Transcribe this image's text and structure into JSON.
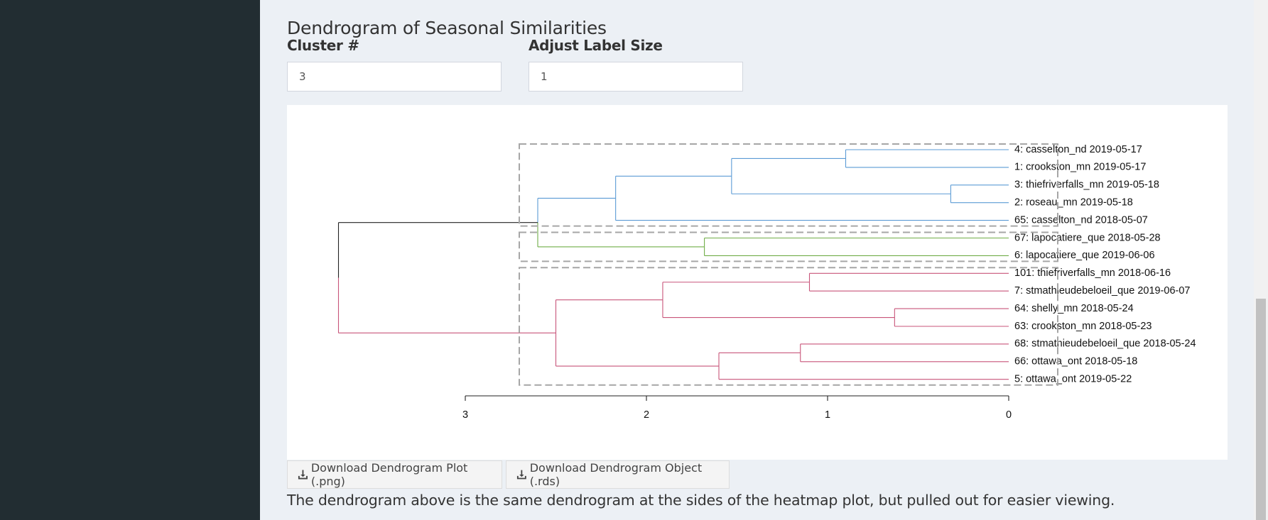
{
  "page": {
    "title": "Dendrogram of Seasonal Similarities",
    "caption": "The dendrogram above is the same dendrogram at the sides of the heatmap plot, but pulled out for easier viewing."
  },
  "controls": {
    "cluster": {
      "label": "Cluster #",
      "value": "3"
    },
    "label_size": {
      "label": "Adjust Label Size",
      "value": "1"
    }
  },
  "buttons": {
    "download_png": "Download Dendrogram Plot (.png)",
    "download_rds": "Download Dendrogram Object (.rds)"
  },
  "icons": {
    "download": "download-icon"
  },
  "chart_data": {
    "type": "dendrogram",
    "leaves": [
      "4: casselton_nd 2019-05-17",
      "1: crookston_mn 2019-05-17",
      "3: thiefriverfalls_mn 2019-05-18",
      "2: roseau_mn 2019-05-18",
      "65: casselton_nd 2018-05-07",
      "67: lapocatiere_que 2018-05-28",
      "6: lapocatiere_que 2019-06-06",
      "101: thiefriverfalls_mn 2018-06-16",
      "7: stmathieudebeloeil_que 2019-06-07",
      "64: shelly_mn 2018-05-24",
      "63: crookston_mn 2018-05-23",
      "68: stmathieudebeloeil_que 2018-05-24",
      "66: ottawa_ont 2018-05-18",
      "5: ottawa_ont 2019-05-22"
    ],
    "merges": [
      {
        "a": [
          0
        ],
        "b": [
          1
        ],
        "height": 0.9
      },
      {
        "a": [
          2
        ],
        "b": [
          3
        ],
        "height": 0.32
      },
      {
        "a": [
          0,
          1
        ],
        "b": [
          2,
          3
        ],
        "height": 1.53
      },
      {
        "a": [
          0,
          1,
          2,
          3
        ],
        "b": [
          4
        ],
        "height": 2.17
      },
      {
        "a": [
          5
        ],
        "b": [
          6
        ],
        "height": 1.68
      },
      {
        "a": [
          0,
          1,
          2,
          3,
          4
        ],
        "b": [
          5,
          6
        ],
        "height": 2.6
      },
      {
        "a": [
          7
        ],
        "b": [
          8
        ],
        "height": 1.1
      },
      {
        "a": [
          9
        ],
        "b": [
          10
        ],
        "height": 0.63
      },
      {
        "a": [
          7,
          8
        ],
        "b": [
          9,
          10
        ],
        "height": 1.91
      },
      {
        "a": [
          11
        ],
        "b": [
          12
        ],
        "height": 1.15
      },
      {
        "a": [
          11,
          12
        ],
        "b": [
          13
        ],
        "height": 1.6
      },
      {
        "a": [
          7,
          8,
          9,
          10
        ],
        "b": [
          11,
          12,
          13
        ],
        "height": 2.5
      },
      {
        "a": [
          0,
          1,
          2,
          3,
          4,
          5,
          6
        ],
        "b": [
          7,
          8,
          9,
          10,
          11,
          12,
          13
        ],
        "height": 3.7
      }
    ],
    "clusters": [
      {
        "leaves": [
          0,
          1,
          2,
          3,
          4
        ],
        "color": "#5b9bd5"
      },
      {
        "leaves": [
          5,
          6
        ],
        "color": "#70ad47"
      },
      {
        "leaves": [
          7,
          8,
          9,
          10,
          11,
          12,
          13
        ],
        "color": "#c8557a"
      }
    ],
    "root_color": "#222222",
    "box_color": "#a6a6a6",
    "x_ticks": [
      3,
      2,
      1,
      0
    ],
    "xlim": [
      3,
      0
    ],
    "grid": false
  }
}
